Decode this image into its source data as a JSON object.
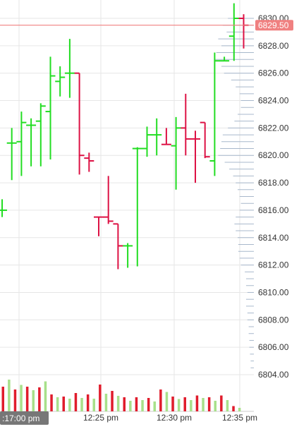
{
  "chart_data": {
    "type": "ohlc",
    "title": "",
    "xlabel": "",
    "ylabel": "",
    "ylim": [
      6804,
      6831
    ],
    "y_ticks": [
      "6804.00",
      "6806.00",
      "6808.00",
      "6810.00",
      "6812.00",
      "6814.00",
      "6816.00",
      "6818.00",
      "6820.00",
      "6822.00",
      "6824.00",
      "6826.00",
      "6828.00",
      "6830.00"
    ],
    "x_tick_labels": [
      "12:25 pm",
      "12:30 pm",
      "12:35 pm"
    ],
    "crosshair_time_label": ":17:00 pm",
    "last_price_label": "6829.50",
    "last_price": 6829.5,
    "colors": {
      "up": "#22dd22",
      "down": "#dd1144",
      "last_price": "#f08080",
      "profile": "#a8b8cc",
      "grid": "#e6e6e6"
    },
    "bars": [
      {
        "dir": "up",
        "open": 6816.0,
        "high": 6816.8,
        "low": 6815.5,
        "close": 6816.0
      },
      {
        "dir": "up",
        "open": 6820.9,
        "high": 6822.0,
        "low": 6818.2,
        "close": 6820.9
      },
      {
        "dir": "up",
        "open": 6821.0,
        "high": 6823.2,
        "low": 6818.5,
        "close": 6822.4
      },
      {
        "dir": "up",
        "open": 6822.2,
        "high": 6822.7,
        "low": 6819.2,
        "close": 6822.2
      },
      {
        "dir": "up",
        "open": 6822.5,
        "high": 6823.8,
        "low": 6819.2,
        "close": 6823.6
      },
      {
        "dir": "up",
        "open": 6823.2,
        "high": 6827.2,
        "low": 6819.7,
        "close": 6825.8
      },
      {
        "dir": "up",
        "open": 6825.4,
        "high": 6826.5,
        "low": 6824.3,
        "close": 6825.7
      },
      {
        "dir": "up",
        "open": 6826.0,
        "high": 6828.5,
        "low": 6824.2,
        "close": 6826.0
      },
      {
        "dir": "down",
        "open": 6826.0,
        "high": 6826.0,
        "low": 6818.6,
        "close": 6820.0
      },
      {
        "dir": "down",
        "open": 6819.8,
        "high": 6820.2,
        "low": 6818.8,
        "close": 6819.6
      },
      {
        "dir": "down",
        "open": 6815.5,
        "high": 6815.5,
        "low": 6814.1,
        "close": 6815.5
      },
      {
        "dir": "down",
        "open": 6815.5,
        "high": 6818.5,
        "low": 6815.0,
        "close": 6815.2
      },
      {
        "dir": "down",
        "open": 6815.0,
        "high": 6815.0,
        "low": 6811.7,
        "close": 6813.4
      },
      {
        "dir": "up",
        "open": 6813.4,
        "high": 6813.6,
        "low": 6811.8,
        "close": 6813.4
      },
      {
        "dir": "up",
        "open": 6820.5,
        "high": 6820.6,
        "low": 6811.9,
        "close": 6820.5
      },
      {
        "dir": "up",
        "open": 6820.5,
        "high": 6822.1,
        "low": 6819.9,
        "close": 6821.5
      },
      {
        "dir": "up",
        "open": 6821.5,
        "high": 6822.7,
        "low": 6820.0,
        "close": 6821.5
      },
      {
        "dir": "down",
        "open": 6820.8,
        "high": 6822.0,
        "low": 6820.8,
        "close": 6820.8
      },
      {
        "dir": "up",
        "open": 6820.7,
        "high": 6822.8,
        "low": 6817.5,
        "close": 6822.0
      },
      {
        "dir": "down",
        "open": 6822.0,
        "high": 6824.5,
        "low": 6820.0,
        "close": 6821.2
      },
      {
        "dir": "down",
        "open": 6821.2,
        "high": 6821.8,
        "low": 6818.0,
        "close": 6821.2
      },
      {
        "dir": "down",
        "open": 6822.4,
        "high": 6822.4,
        "low": 6819.8,
        "close": 6819.9
      },
      {
        "dir": "up",
        "open": 6819.6,
        "high": 6827.5,
        "low": 6818.5,
        "close": 6826.9
      },
      {
        "dir": "up",
        "open": 6826.9,
        "high": 6827.2,
        "low": 6826.9,
        "close": 6826.9
      },
      {
        "dir": "up",
        "open": 6828.7,
        "high": 6831.1,
        "low": 6826.9,
        "close": 6830.0
      },
      {
        "dir": "down",
        "open": 6830.0,
        "high": 6830.3,
        "low": 6827.8,
        "close": 6829.5
      }
    ],
    "volume": [
      {
        "dir": "down",
        "value": 0.7
      },
      {
        "dir": "up",
        "value": 0.9
      },
      {
        "dir": "down",
        "value": 0.62
      },
      {
        "dir": "up",
        "value": 0.75
      },
      {
        "dir": "down",
        "value": 0.7
      },
      {
        "dir": "up",
        "value": 0.6
      },
      {
        "dir": "down",
        "value": 0.68
      },
      {
        "dir": "up",
        "value": 0.85
      },
      {
        "dir": "down",
        "value": 0.48
      },
      {
        "dir": "up",
        "value": 0.4
      },
      {
        "dir": "down",
        "value": 0.42
      },
      {
        "dir": "up",
        "value": 0.36
      },
      {
        "dir": "down",
        "value": 0.52
      },
      {
        "dir": "up",
        "value": 0.38
      },
      {
        "dir": "down",
        "value": 0.48
      },
      {
        "dir": "up",
        "value": 0.36
      },
      {
        "dir": "down",
        "value": 0.76
      },
      {
        "dir": "up",
        "value": 0.5
      },
      {
        "dir": "down",
        "value": 0.58
      },
      {
        "dir": "up",
        "value": 0.44
      },
      {
        "dir": "down",
        "value": 0.4
      },
      {
        "dir": "up",
        "value": 0.3
      },
      {
        "dir": "down",
        "value": 0.4
      },
      {
        "dir": "up",
        "value": 0.32
      },
      {
        "dir": "down",
        "value": 0.38
      },
      {
        "dir": "up",
        "value": 0.28
      },
      {
        "dir": "down",
        "value": 0.62
      },
      {
        "dir": "up",
        "value": 0.55
      },
      {
        "dir": "down",
        "value": 0.42
      },
      {
        "dir": "up",
        "value": 0.35
      },
      {
        "dir": "down",
        "value": 0.4
      },
      {
        "dir": "up",
        "value": 0.32
      },
      {
        "dir": "down",
        "value": 0.45
      },
      {
        "dir": "up",
        "value": 0.38
      },
      {
        "dir": "down",
        "value": 0.4
      },
      {
        "dir": "up",
        "value": 0.3
      },
      {
        "dir": "down",
        "value": 0.45
      },
      {
        "dir": "up",
        "value": 0.32
      },
      {
        "dir": "down",
        "value": 0.15
      },
      {
        "dir": "up",
        "value": 0.1
      }
    ],
    "volume_profile": [
      {
        "price": 6830.0,
        "size": 0.4
      },
      {
        "price": 6829.5,
        "size": 0.48
      },
      {
        "price": 6829.0,
        "size": 0.42
      },
      {
        "price": 6828.5,
        "size": 0.55
      },
      {
        "price": 6828.0,
        "size": 0.5
      },
      {
        "price": 6827.5,
        "size": 0.58
      },
      {
        "price": 6827.0,
        "size": 0.6
      },
      {
        "price": 6826.5,
        "size": 0.5
      },
      {
        "price": 6826.0,
        "size": 0.46
      },
      {
        "price": 6825.5,
        "size": 0.35
      },
      {
        "price": 6825.0,
        "size": 0.28
      },
      {
        "price": 6824.5,
        "size": 0.22
      },
      {
        "price": 6824.0,
        "size": 0.2
      },
      {
        "price": 6823.5,
        "size": 0.2
      },
      {
        "price": 6823.0,
        "size": 0.25
      },
      {
        "price": 6822.5,
        "size": 0.3
      },
      {
        "price": 6822.0,
        "size": 0.4
      },
      {
        "price": 6821.5,
        "size": 0.48
      },
      {
        "price": 6821.0,
        "size": 0.5
      },
      {
        "price": 6820.5,
        "size": 0.52
      },
      {
        "price": 6820.0,
        "size": 0.55
      },
      {
        "price": 6819.5,
        "size": 0.45
      },
      {
        "price": 6819.0,
        "size": 0.38
      },
      {
        "price": 6818.5,
        "size": 0.32
      },
      {
        "price": 6818.0,
        "size": 0.28
      },
      {
        "price": 6817.5,
        "size": 0.25
      },
      {
        "price": 6817.0,
        "size": 0.22
      },
      {
        "price": 6816.5,
        "size": 0.2
      },
      {
        "price": 6816.0,
        "size": 0.22
      },
      {
        "price": 6815.5,
        "size": 0.28
      },
      {
        "price": 6815.0,
        "size": 0.3
      },
      {
        "price": 6814.5,
        "size": 0.28
      },
      {
        "price": 6814.0,
        "size": 0.25
      },
      {
        "price": 6813.5,
        "size": 0.24
      },
      {
        "price": 6813.0,
        "size": 0.24
      },
      {
        "price": 6812.5,
        "size": 0.22
      },
      {
        "price": 6812.0,
        "size": 0.2
      },
      {
        "price": 6811.5,
        "size": 0.14
      },
      {
        "price": 6811.0,
        "size": 0.12
      },
      {
        "price": 6810.5,
        "size": 0.12
      },
      {
        "price": 6810.0,
        "size": 0.1
      },
      {
        "price": 6809.5,
        "size": 0.12
      },
      {
        "price": 6809.0,
        "size": 0.12
      },
      {
        "price": 6808.5,
        "size": 0.1
      },
      {
        "price": 6808.0,
        "size": 0.1
      },
      {
        "price": 6807.5,
        "size": 0.08
      },
      {
        "price": 6807.0,
        "size": 0.08
      },
      {
        "price": 6806.5,
        "size": 0.07
      },
      {
        "price": 6806.0,
        "size": 0.07
      },
      {
        "price": 6805.5,
        "size": 0.06
      },
      {
        "price": 6805.0,
        "size": 0.05
      },
      {
        "price": 6804.5,
        "size": 0.05
      }
    ]
  }
}
